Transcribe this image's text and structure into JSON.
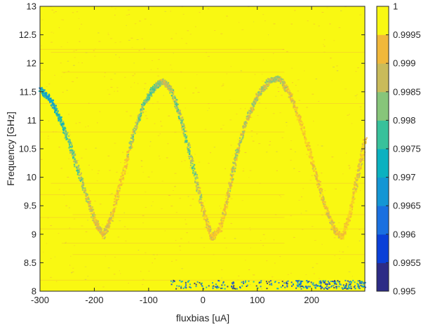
{
  "chart_data": {
    "type": "heatmap",
    "title": "",
    "xlabel": "fluxbias [uA]",
    "ylabel": "Frequency [GHz]",
    "xlim": [
      -300,
      298
    ],
    "ylim": [
      8,
      13
    ],
    "x_ticks": [
      -300,
      -200,
      -100,
      0,
      100,
      200
    ],
    "x_tick_labels": [
      "-300",
      "-200",
      "-100",
      "0",
      "100",
      "200"
    ],
    "y_ticks": [
      8,
      8.5,
      9,
      9.5,
      10,
      10.5,
      11,
      11.5,
      12,
      12.5,
      13
    ],
    "y_tick_labels": [
      "8",
      "8.5",
      "9",
      "9.5",
      "10",
      "10.5",
      "11",
      "11.5",
      "12",
      "12.5",
      "13"
    ],
    "grid": false,
    "background_value": 1.0,
    "spectral_line": {
      "description_values": "approximate resonance frequency (GHz) vs fluxbias (uA)",
      "x": [
        -300,
        -280,
        -260,
        -240,
        -220,
        -200,
        -185,
        -170,
        -150,
        -130,
        -110,
        -90,
        -75,
        -60,
        -40,
        -20,
        0,
        15,
        30,
        45,
        60,
        80,
        100,
        120,
        140,
        160,
        180,
        200,
        220,
        240,
        255,
        270,
        285,
        298
      ],
      "y": [
        11.55,
        11.35,
        10.95,
        10.4,
        9.8,
        9.25,
        8.98,
        9.3,
        10.0,
        10.75,
        11.3,
        11.6,
        11.7,
        11.55,
        11.0,
        10.2,
        9.4,
        8.95,
        9.1,
        9.7,
        10.4,
        11.05,
        11.45,
        11.7,
        11.75,
        11.45,
        10.95,
        10.3,
        9.6,
        9.1,
        8.95,
        9.4,
        10.1,
        10.7
      ],
      "min_value": [
        0.9965,
        0.9965,
        0.997,
        0.9975,
        0.998,
        0.9985,
        0.9985,
        0.9985,
        0.999,
        0.998,
        0.9975,
        0.9975,
        0.998,
        0.998,
        0.9975,
        0.9975,
        0.9985,
        0.9985,
        0.999,
        0.9985,
        0.998,
        0.998,
        0.998,
        0.998,
        0.998,
        0.9985,
        0.999,
        0.999,
        0.9985,
        0.9985,
        0.999,
        0.999,
        0.9985,
        0.999
      ]
    },
    "colorbar": {
      "min": 0.995,
      "max": 1.0,
      "levels": 10,
      "tick_values": [
        0.995,
        0.9955,
        0.996,
        0.9965,
        0.997,
        0.9975,
        0.998,
        0.9985,
        0.999,
        0.9995,
        1
      ],
      "tick_labels": [
        "0.995",
        "0.9955",
        "0.996",
        "0.9965",
        "0.997",
        "0.9975",
        "0.998",
        "0.9985",
        "0.999",
        "0.9995",
        "1"
      ],
      "colors": [
        "#2c2b86",
        "#0a40d8",
        "#1a70e0",
        "#1496d4",
        "#0bb1c0",
        "#38c19b",
        "#87c57a",
        "#c9bb5a",
        "#f1b83a",
        "#f9d324"
      ],
      "top_color": "#f9f812"
    }
  }
}
